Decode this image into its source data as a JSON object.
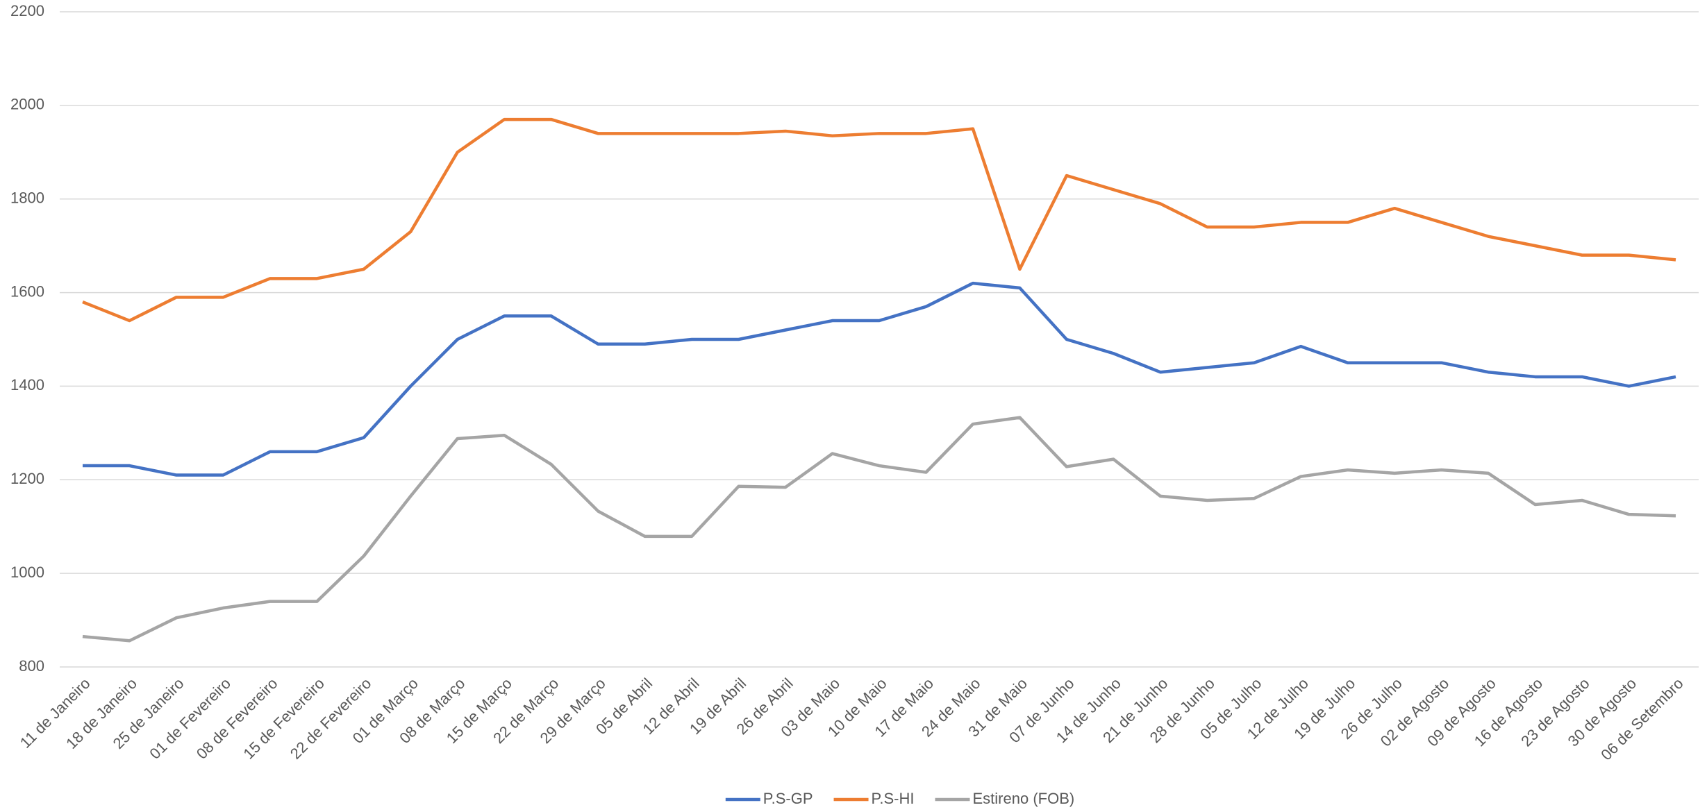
{
  "chart_data": {
    "type": "line",
    "categories": [
      "11 de Janeiro",
      "18 de Janeiro",
      "25 de Janeiro",
      "01 de Fevereiro",
      "08 de Fevereiro",
      "15 de Fevereiro",
      "22 de Fevereiro",
      "01 de Março",
      "08 de Março",
      "15 de Março",
      "22 de Março",
      "29 de Março",
      "05 de Abril",
      "12 de Abril",
      "19 de Abril",
      "26 de Abril",
      "03 de Maio",
      "10 de Maio",
      "17 de Maio",
      "24 de Maio",
      "31 de Maio",
      "07 de Junho",
      "14 de Junho",
      "21 de Junho",
      "28 de Junho",
      "05 de Julho",
      "12 de Julho",
      "19 de Julho",
      "26 de Julho",
      "02 de Agosto",
      "09 de Agosto",
      "16 de Agosto",
      "23 de Agosto",
      "30 de Agosto",
      "06 de Setembro"
    ],
    "series": [
      {
        "name": "P.S-GP",
        "color": "#4472c4",
        "values": [
          1230,
          1230,
          1210,
          1210,
          1260,
          1260,
          1290,
          1400,
          1500,
          1550,
          1550,
          1490,
          1490,
          1500,
          1500,
          1520,
          1540,
          1540,
          1570,
          1620,
          1610,
          1500,
          1470,
          1430,
          1440,
          1450,
          1485,
          1450,
          1450,
          1450,
          1430,
          1420,
          1420,
          1400,
          1420
        ]
      },
      {
        "name": "P.S-HI",
        "color": "#ed7d31",
        "values": [
          1580,
          1540,
          1590,
          1590,
          1630,
          1630,
          1650,
          1730,
          1900,
          1970,
          1970,
          1940,
          1940,
          1940,
          1940,
          1945,
          1935,
          1940,
          1940,
          1950,
          1650,
          1850,
          1820,
          1790,
          1740,
          1740,
          1750,
          1750,
          1780,
          1750,
          1720,
          1700,
          1680,
          1680,
          1670
        ]
      },
      {
        "name": "Estireno (FOB)",
        "color": "#a5a5a5",
        "values": [
          865,
          856,
          905,
          926,
          940,
          940,
          1037,
          1165,
          1288,
          1295,
          1233,
          1133,
          1079,
          1079,
          1186,
          1184,
          1256,
          1230,
          1216,
          1319,
          1333,
          1228,
          1244,
          1165,
          1156,
          1160,
          1207,
          1221,
          1214,
          1221,
          1214,
          1147,
          1156,
          1126,
          1123
        ]
      }
    ],
    "ylim": [
      800,
      2200
    ],
    "yticks": [
      800,
      1000,
      1200,
      1400,
      1600,
      1800,
      2000,
      2200
    ],
    "grid": true,
    "legend": "bottom"
  }
}
